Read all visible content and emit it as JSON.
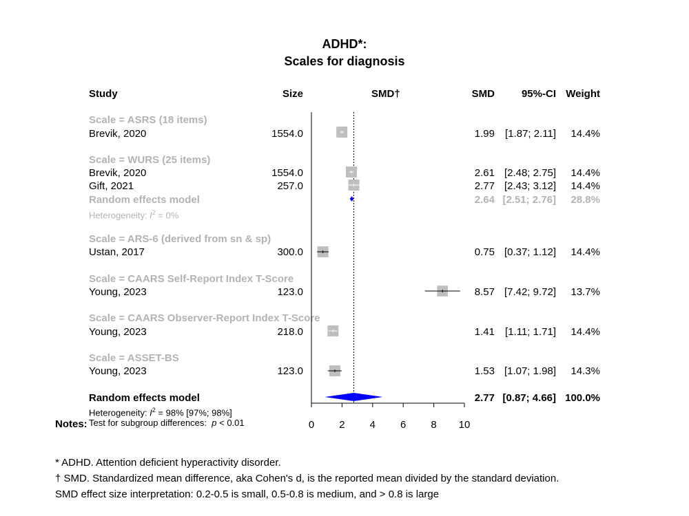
{
  "chart_data": {
    "type": "forest",
    "title": "ADHD*:",
    "subtitle": "Scales for diagnosis",
    "columns": {
      "study": "Study",
      "size": "Size",
      "plot": "SMD†",
      "smd": "SMD",
      "ci": "95%-CI",
      "weight": "Weight"
    },
    "xlim": [
      0,
      10
    ],
    "x_ticks": [
      "0",
      "2",
      "4",
      "6",
      "8",
      "10"
    ],
    "reference_line": 2.77,
    "groups": [
      {
        "label": "Scale = ASRS (18 items)",
        "studies": [
          {
            "name": "Brevik, 2020",
            "size": "1554.0",
            "smd": 1.99,
            "lower": 1.87,
            "upper": 2.11,
            "smd_text": "1.99",
            "ci_text": "[1.87; 2.11]",
            "weight": "14.4%",
            "w": 14.4
          }
        ]
      },
      {
        "label": "Scale = WURS (25 items)",
        "studies": [
          {
            "name": "Brevik, 2020",
            "size": "1554.0",
            "smd": 2.61,
            "lower": 2.48,
            "upper": 2.75,
            "smd_text": "2.61",
            "ci_text": "[2.48; 2.75]",
            "weight": "14.4%",
            "w": 14.4
          },
          {
            "name": "Gift, 2021",
            "size": "257.0",
            "smd": 2.77,
            "lower": 2.43,
            "upper": 3.12,
            "smd_text": "2.77",
            "ci_text": "[2.43; 3.12]",
            "weight": "14.4%",
            "w": 14.4
          }
        ],
        "pooled": {
          "label": "Random effects model",
          "smd": 2.64,
          "lower": 2.51,
          "upper": 2.76,
          "smd_text": "2.64",
          "ci_text": "[2.51; 2.76]",
          "weight": "28.8%"
        },
        "heterogeneity": {
          "prefix": "Heterogeneity: ",
          "i2": "I",
          "sup": "2",
          "suffix": " = 0%"
        }
      },
      {
        "label": "Scale = ARS-6 (derived from sn & sp)",
        "studies": [
          {
            "name": "Ustan, 2017",
            "size": "300.0",
            "smd": 0.75,
            "lower": 0.37,
            "upper": 1.12,
            "smd_text": "0.75",
            "ci_text": "[0.37; 1.12]",
            "weight": "14.4%",
            "w": 14.4
          }
        ]
      },
      {
        "label": "Scale = CAARS Self-Report Index T-Score",
        "studies": [
          {
            "name": "Young, 2023",
            "size": "123.0",
            "smd": 8.57,
            "lower": 7.42,
            "upper": 9.72,
            "smd_text": "8.57",
            "ci_text": "[7.42; 9.72]",
            "weight": "13.7%",
            "w": 13.7
          }
        ]
      },
      {
        "label": "Scale = CAARS Observer-Report Index T-Score",
        "studies": [
          {
            "name": "Young, 2023",
            "size": "218.0",
            "smd": 1.41,
            "lower": 1.11,
            "upper": 1.71,
            "smd_text": "1.41",
            "ci_text": "[1.11; 1.71]",
            "weight": "14.4%",
            "w": 14.4
          }
        ]
      },
      {
        "label": "Scale = ASSET-BS",
        "studies": [
          {
            "name": "Young, 2023",
            "size": "123.0",
            "smd": 1.53,
            "lower": 1.07,
            "upper": 1.98,
            "smd_text": "1.53",
            "ci_text": "[1.07; 1.98]",
            "weight": "14.3%",
            "w": 14.3
          }
        ]
      }
    ],
    "overall": {
      "label": "Random effects model",
      "smd": 2.77,
      "lower": 0.87,
      "upper": 4.66,
      "smd_text": "2.77",
      "ci_text": "[0.87; 4.66]",
      "weight": "100.0%",
      "heterogeneity": {
        "prefix": "Heterogeneity: ",
        "i2": "I",
        "sup": "2",
        "suffix": " = 98% [97%; 98%]"
      },
      "subgroup_test": {
        "text": "Test for subgroup differences:",
        "p_label": "p",
        "p_value": " < 0.01"
      }
    },
    "colors": {
      "square": "#bebebe",
      "diamond": "#0000ff",
      "group_label": "#b3b3b3"
    }
  },
  "notes": {
    "label": "Notes:",
    "lines": [
      "* ADHD. Attention deficient hyperactivity disorder.",
      "† SMD. Standardized mean difference, aka Cohen's d, is the reported mean divided by the standard deviation.",
      "SMD effect size interpretation: 0.2-0.5 is small, 0.5-0.8 is medium, and > 0.8 is large"
    ]
  }
}
